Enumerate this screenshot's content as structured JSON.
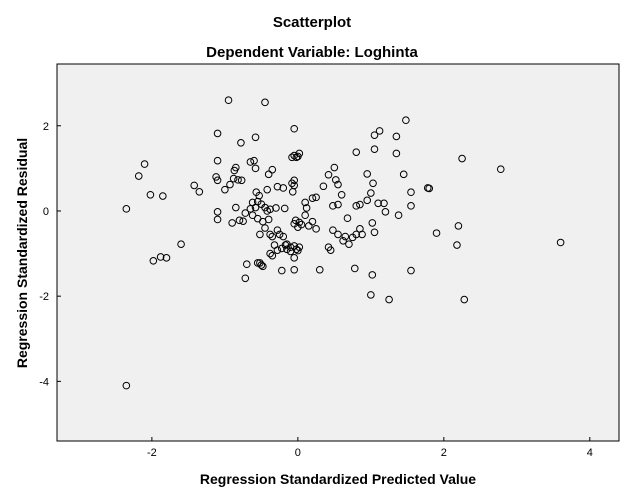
{
  "chart_data": {
    "type": "scatter",
    "title": "Scatterplot",
    "subtitle": "Dependent Variable: Loghinta",
    "xlabel": "Regression Standardized Predicted Value",
    "ylabel": "Regression Standardized Residual",
    "xlim": [
      -3.3,
      4.4
    ],
    "ylim": [
      -5.4,
      3.45
    ],
    "xticks": [
      -2,
      0,
      2,
      4
    ],
    "yticks": [
      -4,
      -2,
      0,
      2
    ],
    "grid": false,
    "points": [
      [
        -0.95,
        2.6
      ],
      [
        -0.45,
        2.55
      ],
      [
        1.48,
        2.13
      ],
      [
        -1.1,
        1.82
      ],
      [
        1.12,
        1.88
      ],
      [
        1.05,
        1.78
      ],
      [
        1.35,
        1.75
      ],
      [
        -0.58,
        1.73
      ],
      [
        -0.05,
        1.93
      ],
      [
        -0.78,
        1.6
      ],
      [
        1.05,
        1.45
      ],
      [
        1.35,
        1.35
      ],
      [
        0.8,
        1.38
      ],
      [
        -1.1,
        1.18
      ],
      [
        -0.6,
        1.18
      ],
      [
        -0.65,
        1.15
      ],
      [
        -0.58,
        1.0
      ],
      [
        -0.05,
        1.3
      ],
      [
        0.02,
        1.35
      ],
      [
        0.0,
        1.28
      ],
      [
        -0.02,
        1.26
      ],
      [
        -0.08,
        1.26
      ],
      [
        0.5,
        1.02
      ],
      [
        -0.85,
        1.02
      ],
      [
        -0.87,
        0.95
      ],
      [
        -2.1,
        1.1
      ],
      [
        2.25,
        1.23
      ],
      [
        2.78,
        0.98
      ],
      [
        -2.18,
        0.82
      ],
      [
        -1.12,
        0.8
      ],
      [
        -1.1,
        0.72
      ],
      [
        -0.88,
        0.76
      ],
      [
        -0.82,
        0.73
      ],
      [
        -0.77,
        0.72
      ],
      [
        -0.4,
        0.86
      ],
      [
        -0.35,
        0.97
      ],
      [
        -0.2,
        0.54
      ],
      [
        -0.08,
        0.65
      ],
      [
        -0.05,
        0.72
      ],
      [
        0.42,
        0.85
      ],
      [
        0.52,
        0.73
      ],
      [
        0.55,
        0.62
      ],
      [
        0.95,
        0.87
      ],
      [
        1.03,
        0.65
      ],
      [
        1.45,
        0.86
      ],
      [
        1.55,
        0.44
      ],
      [
        1.78,
        0.54
      ],
      [
        1.8,
        0.53
      ],
      [
        -1.42,
        0.6
      ],
      [
        -1.35,
        0.45
      ],
      [
        -1.0,
        0.5
      ],
      [
        -0.93,
        0.62
      ],
      [
        -0.57,
        0.44
      ],
      [
        -0.53,
        0.36
      ],
      [
        -0.42,
        0.5
      ],
      [
        -0.28,
        0.57
      ],
      [
        -0.07,
        0.45
      ],
      [
        -0.05,
        0.6
      ],
      [
        0.25,
        0.32
      ],
      [
        0.35,
        0.58
      ],
      [
        0.6,
        0.38
      ],
      [
        1.0,
        0.42
      ],
      [
        1.1,
        0.18
      ],
      [
        0.85,
        0.15
      ],
      [
        0.95,
        0.25
      ],
      [
        -2.02,
        0.38
      ],
      [
        -1.85,
        0.35
      ],
      [
        -0.62,
        0.2
      ],
      [
        -0.58,
        0.08
      ],
      [
        -0.55,
        0.22
      ],
      [
        -0.5,
        0.16
      ],
      [
        -0.45,
        0.08
      ],
      [
        -0.42,
        0.0
      ],
      [
        -0.38,
        0.04
      ],
      [
        -0.72,
        -0.05
      ],
      [
        -0.65,
        0.05
      ],
      [
        -0.62,
        -0.1
      ],
      [
        -0.85,
        0.08
      ],
      [
        -0.8,
        -0.22
      ],
      [
        -0.75,
        -0.24
      ],
      [
        -0.9,
        -0.28
      ],
      [
        -0.3,
        0.07
      ],
      [
        -0.18,
        0.06
      ],
      [
        0.1,
        0.2
      ],
      [
        0.12,
        0.07
      ],
      [
        0.2,
        0.3
      ],
      [
        0.48,
        0.12
      ],
      [
        0.55,
        0.15
      ],
      [
        0.8,
        0.12
      ],
      [
        1.18,
        0.18
      ],
      [
        1.2,
        -0.02
      ],
      [
        1.38,
        -0.1
      ],
      [
        1.55,
        0.12
      ],
      [
        -2.35,
        0.05
      ],
      [
        -1.1,
        -0.02
      ],
      [
        -1.1,
        -0.2
      ],
      [
        -0.55,
        -0.18
      ],
      [
        -0.48,
        -0.25
      ],
      [
        -0.4,
        -0.2
      ],
      [
        -0.52,
        -0.55
      ],
      [
        -0.45,
        -0.4
      ],
      [
        -0.38,
        -0.55
      ],
      [
        -0.35,
        -0.6
      ],
      [
        -0.28,
        -0.45
      ],
      [
        -0.25,
        -0.55
      ],
      [
        -0.2,
        -0.6
      ],
      [
        -0.17,
        -0.8
      ],
      [
        -0.15,
        -0.9
      ],
      [
        -0.1,
        -0.85
      ],
      [
        -0.05,
        -0.3
      ],
      [
        -0.03,
        -0.22
      ],
      [
        0.0,
        -0.38
      ],
      [
        0.02,
        -0.27
      ],
      [
        0.05,
        -0.32
      ],
      [
        0.1,
        -0.1
      ],
      [
        0.15,
        -0.35
      ],
      [
        0.2,
        -0.25
      ],
      [
        0.25,
        -0.42
      ],
      [
        0.48,
        -0.45
      ],
      [
        0.55,
        -0.55
      ],
      [
        0.62,
        -0.7
      ],
      [
        0.65,
        -0.6
      ],
      [
        0.7,
        -0.78
      ],
      [
        0.75,
        -0.62
      ],
      [
        0.8,
        -0.55
      ],
      [
        0.85,
        -0.42
      ],
      [
        0.88,
        -0.55
      ],
      [
        1.05,
        -0.5
      ],
      [
        0.68,
        -0.17
      ],
      [
        1.02,
        -0.28
      ],
      [
        1.9,
        -0.52
      ],
      [
        2.18,
        -0.8
      ],
      [
        2.2,
        -0.35
      ],
      [
        3.6,
        -0.74
      ],
      [
        -0.32,
        -0.8
      ],
      [
        -0.28,
        -0.92
      ],
      [
        -0.22,
        -0.88
      ],
      [
        -0.15,
        -0.78
      ],
      [
        -0.1,
        -0.95
      ],
      [
        -0.05,
        -0.82
      ],
      [
        -0.02,
        -0.9
      ],
      [
        0.0,
        -0.93
      ],
      [
        0.02,
        -0.85
      ],
      [
        -0.35,
        -1.05
      ],
      [
        -0.38,
        -1.0
      ],
      [
        -0.05,
        -1.1
      ],
      [
        0.42,
        -0.85
      ],
      [
        0.45,
        -0.92
      ],
      [
        -1.6,
        -0.78
      ],
      [
        -1.8,
        -1.1
      ],
      [
        -1.88,
        -1.08
      ],
      [
        -1.98,
        -1.17
      ],
      [
        -0.55,
        -1.22
      ],
      [
        -0.5,
        -1.27
      ],
      [
        -0.48,
        -1.3
      ],
      [
        -0.52,
        -1.22
      ],
      [
        -0.7,
        -1.25
      ],
      [
        -0.22,
        -1.4
      ],
      [
        -0.05,
        -1.38
      ],
      [
        0.3,
        -1.38
      ],
      [
        0.78,
        -1.35
      ],
      [
        1.02,
        -1.5
      ],
      [
        1.55,
        -1.4
      ],
      [
        -0.72,
        -1.58
      ],
      [
        1.0,
        -1.97
      ],
      [
        1.25,
        -2.08
      ],
      [
        2.28,
        -2.08
      ],
      [
        -2.35,
        -4.1
      ]
    ]
  }
}
